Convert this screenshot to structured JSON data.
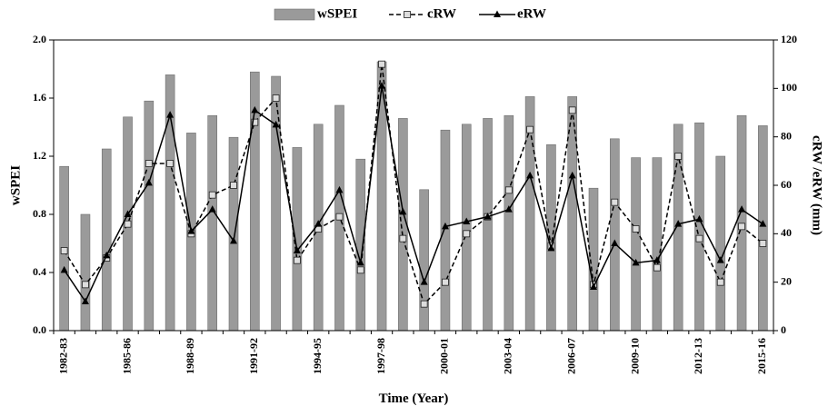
{
  "chart_data": {
    "type": "bar-line",
    "x_label": "Time  (Year)",
    "y_label": "wSPEI",
    "y2_label": "cRW /eRW (mm)",
    "categories": [
      "1982-83",
      null,
      null,
      "1985-86",
      null,
      null,
      "1988-89",
      null,
      null,
      "1991-92",
      null,
      null,
      "1994-95",
      null,
      null,
      "1997-98",
      null,
      null,
      "2000-01",
      null,
      null,
      "2003-04",
      null,
      null,
      "2006-07",
      null,
      null,
      "2009-10",
      null,
      null,
      "2012-13",
      null,
      null,
      "2015-16"
    ],
    "series": [
      {
        "name": "wSPEI",
        "type": "bar",
        "color": "#9a9a9a",
        "values": [
          1.13,
          0.8,
          1.25,
          1.47,
          1.58,
          1.76,
          1.36,
          1.48,
          1.33,
          1.78,
          1.75,
          1.26,
          1.42,
          1.55,
          1.18,
          1.85,
          1.46,
          0.97,
          1.38,
          1.42,
          1.46,
          1.48,
          1.61,
          1.28,
          1.61,
          0.98,
          1.32,
          1.19,
          1.19,
          1.42,
          1.43,
          1.2,
          1.48,
          1.41
        ]
      },
      {
        "name": "cRW",
        "type": "line",
        "axis": "y2",
        "color": "#000000",
        "dashed": true,
        "marker": "square",
        "values": [
          33,
          19,
          30,
          44,
          69,
          69,
          40,
          56,
          60,
          86,
          96,
          29,
          42,
          47,
          25,
          110,
          38,
          11,
          20,
          40,
          47,
          58,
          83,
          35,
          91,
          19,
          53,
          42,
          26,
          72,
          38,
          20,
          43,
          36
        ]
      },
      {
        "name": "eRW",
        "type": "line",
        "axis": "y2",
        "color": "#000000",
        "dashed": false,
        "marker": "triangle",
        "values": [
          25,
          12,
          31,
          48,
          61,
          89,
          41,
          50,
          37,
          91,
          85,
          33,
          44,
          58,
          28,
          101,
          49,
          20,
          43,
          45,
          47,
          50,
          64,
          34,
          64,
          18,
          36,
          28,
          29,
          44,
          46,
          29,
          50,
          44
        ]
      }
    ],
    "ylim": [
      0,
      2
    ],
    "yticks": [
      {
        "value": 0,
        "label": "0.0"
      },
      0.4,
      0.8,
      1.2,
      1.6,
      {
        "value": 2,
        "label": "2.0"
      }
    ],
    "y2lim": [
      0,
      120
    ],
    "y2ticks": [
      0,
      20,
      40,
      60,
      80,
      100,
      120
    ],
    "legend": "top"
  }
}
